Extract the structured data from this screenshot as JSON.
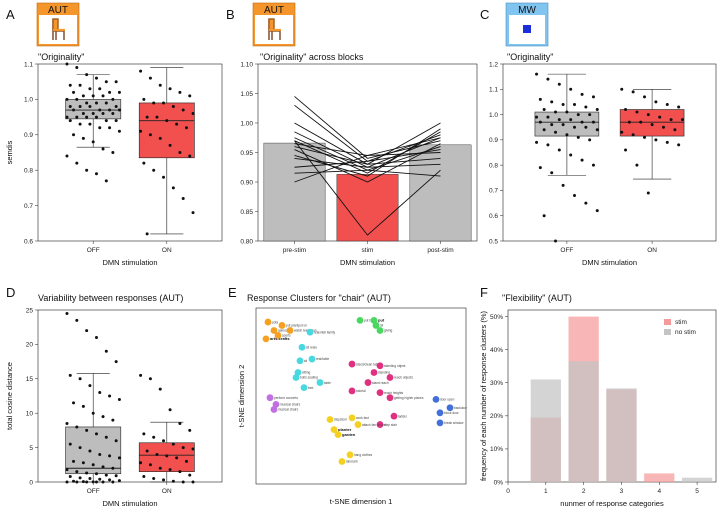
{
  "colors": {
    "off": "#bdbdbd",
    "on": "#f2504f",
    "orange": "#f5962c",
    "badge_blue": "#1a2fd8",
    "stim_bar": "#f59a9a",
    "nostim_bar": "#c4c4c4",
    "clusters": [
      "#f5a020",
      "#48d860",
      "#48d8e0",
      "#e03080",
      "#c070e0",
      "#f5d020",
      "#4070d8"
    ]
  },
  "panels": {
    "A": {
      "letter": "A",
      "badge": "AUT",
      "title": "\"Originality\""
    },
    "B": {
      "letter": "B",
      "badge": "AUT",
      "title": "\"Originality\" across blocks"
    },
    "C": {
      "letter": "C",
      "badge": "MW",
      "title": "\"Originality\""
    },
    "D": {
      "letter": "D",
      "title": "Variability between responses (AUT)"
    },
    "E": {
      "letter": "E",
      "title": "Response Clusters for \"chair\" (AUT)"
    },
    "F": {
      "letter": "F",
      "title": "\"Flexibility\" (AUT)"
    }
  },
  "chart_data": [
    {
      "id": "A",
      "type": "box",
      "title": "\"Originality\"",
      "xlabel": "DMN stimulation",
      "ylabel": "semdis",
      "ylim": [
        0.6,
        1.1
      ],
      "yticks": [
        "0.6",
        "0.7",
        "0.8",
        "0.9",
        "1.0",
        "1.1"
      ],
      "categories": [
        "OFF",
        "ON"
      ],
      "boxes": [
        {
          "name": "OFF",
          "min": 0.865,
          "q1": 0.945,
          "median": 0.97,
          "q3": 1.0,
          "max": 1.07,
          "points": [
            1.1,
            1.09,
            1.07,
            1.06,
            1.05,
            1.05,
            1.04,
            1.04,
            1.03,
            1.03,
            1.02,
            1.02,
            1.02,
            1.01,
            1.01,
            1.01,
            1.0,
            1.0,
            1.0,
            0.99,
            0.99,
            0.99,
            0.98,
            0.98,
            0.98,
            0.98,
            0.97,
            0.97,
            0.97,
            0.97,
            0.96,
            0.96,
            0.96,
            0.96,
            0.95,
            0.95,
            0.95,
            0.95,
            0.94,
            0.94,
            0.94,
            0.93,
            0.93,
            0.92,
            0.92,
            0.91,
            0.9,
            0.89,
            0.88,
            0.86,
            0.85,
            0.84,
            0.82,
            0.8,
            0.79,
            0.77
          ]
        },
        {
          "name": "ON",
          "min": 0.62,
          "q1": 0.835,
          "median": 0.94,
          "q3": 0.99,
          "max": 1.09,
          "points": [
            1.08,
            1.06,
            1.04,
            1.03,
            1.02,
            1.01,
            1.0,
            0.99,
            0.99,
            0.98,
            0.97,
            0.96,
            0.95,
            0.95,
            0.94,
            0.93,
            0.92,
            0.91,
            0.9,
            0.89,
            0.87,
            0.85,
            0.84,
            0.82,
            0.8,
            0.78,
            0.75,
            0.72,
            0.68,
            0.62
          ]
        }
      ]
    },
    {
      "id": "B",
      "type": "bar",
      "title": "\"Originality\" across blocks",
      "xlabel": "DMN stimulation",
      "ylabel": "",
      "ylim": [
        0.8,
        1.1
      ],
      "yticks": [
        "0.80",
        "0.85",
        "0.90",
        "0.95",
        "1.00",
        "1.05",
        "1.10"
      ],
      "categories": [
        "pre-stim",
        "stim",
        "post-stim"
      ],
      "values": [
        0.966,
        0.913,
        0.963
      ],
      "subjects": [
        [
          1.045,
          0.94,
          0.97
        ],
        [
          1.03,
          0.935,
          0.98
        ],
        [
          1.0,
          0.93,
          1.0
        ],
        [
          0.985,
          0.925,
          0.975
        ],
        [
          0.975,
          0.92,
          0.96
        ],
        [
          0.97,
          0.915,
          0.985
        ],
        [
          0.965,
          0.945,
          0.95
        ],
        [
          0.96,
          0.93,
          0.94
        ],
        [
          0.955,
          0.9,
          0.965
        ],
        [
          0.945,
          0.91,
          0.99
        ],
        [
          0.94,
          0.925,
          0.93
        ],
        [
          0.925,
          0.935,
          0.955
        ],
        [
          0.915,
          0.92,
          0.91
        ],
        [
          0.9,
          0.945,
          0.975
        ],
        [
          0.97,
          0.81,
          0.92
        ]
      ]
    },
    {
      "id": "C",
      "type": "box",
      "title": "\"Originality\"",
      "xlabel": "DMN stimulation",
      "ylabel": "",
      "ylim": [
        0.5,
        1.2
      ],
      "yticks": [
        "0.5",
        "0.6",
        "0.7",
        "0.8",
        "0.9",
        "1.0",
        "1.1",
        "1.2"
      ],
      "categories": [
        "OFF",
        "ON"
      ],
      "boxes": [
        {
          "name": "OFF",
          "min": 0.76,
          "q1": 0.915,
          "median": 0.97,
          "q3": 1.01,
          "max": 1.16,
          "points": [
            1.16,
            1.14,
            1.12,
            1.1,
            1.08,
            1.07,
            1.06,
            1.05,
            1.04,
            1.04,
            1.03,
            1.02,
            1.02,
            1.01,
            1.01,
            1.0,
            1.0,
            0.99,
            0.99,
            0.98,
            0.98,
            0.97,
            0.97,
            0.97,
            0.96,
            0.96,
            0.95,
            0.95,
            0.94,
            0.94,
            0.93,
            0.92,
            0.91,
            0.9,
            0.89,
            0.88,
            0.86,
            0.84,
            0.82,
            0.8,
            0.79,
            0.77,
            0.72,
            0.68,
            0.65,
            0.62,
            0.6,
            0.5
          ]
        },
        {
          "name": "ON",
          "min": 0.745,
          "q1": 0.915,
          "median": 0.97,
          "q3": 1.02,
          "max": 1.1,
          "points": [
            1.1,
            1.09,
            1.07,
            1.05,
            1.04,
            1.03,
            1.02,
            1.01,
            1.0,
            0.99,
            0.98,
            0.98,
            0.97,
            0.97,
            0.96,
            0.95,
            0.94,
            0.93,
            0.92,
            0.91,
            0.9,
            0.89,
            0.88,
            0.86,
            0.8,
            0.69
          ]
        }
      ]
    },
    {
      "id": "D",
      "type": "box",
      "title": "Variability between responses (AUT)",
      "xlabel": "DMN stimulation",
      "ylabel": "total cosine distance",
      "ylim": [
        0,
        25
      ],
      "yticks": [
        "0",
        "5",
        "10",
        "15",
        "20",
        "25"
      ],
      "categories": [
        "OFF",
        "ON"
      ],
      "boxes": [
        {
          "name": "OFF",
          "min": 0,
          "q1": 1.2,
          "median": 2.0,
          "q3": 8.0,
          "max": 15.8,
          "points": [
            24.5,
            23.5,
            22,
            21,
            19,
            17.5,
            15.5,
            15,
            14,
            13,
            12.5,
            12,
            11.5,
            11,
            10,
            9.5,
            9,
            8.5,
            8,
            7.5,
            7,
            6.5,
            6,
            5.5,
            5,
            4.5,
            4,
            3.8,
            3.5,
            3,
            2.8,
            2.5,
            2.2,
            2,
            1.8,
            1.5,
            1.3,
            1.2,
            1,
            0.9,
            0.8,
            0.6,
            0.5,
            0.4,
            0.3,
            0.2,
            0.1,
            0.05,
            0.02,
            0,
            0,
            0,
            0,
            0,
            0
          ]
        },
        {
          "name": "ON",
          "min": 0,
          "q1": 1.5,
          "median": 3.9,
          "q3": 5.7,
          "max": 8.7,
          "points": [
            15.5,
            15,
            13.5,
            10.5,
            8.5,
            7.5,
            7,
            6.5,
            6,
            5.5,
            5,
            4.8,
            4.5,
            4,
            3.8,
            3.5,
            3,
            2.8,
            2.5,
            2,
            1.8,
            1.5,
            1,
            0.8,
            0.5,
            0.3,
            0.1,
            0,
            0
          ]
        }
      ]
    },
    {
      "id": "E",
      "type": "scatter",
      "title": "Response Clusters for \"chair\" (AUT)",
      "xlabel": "t-SNE dimension 1",
      "ylabel": "t-SNE dimension 2",
      "points": [
        {
          "x": 0.04,
          "y": 0.94,
          "c": 0,
          "label": "sofa"
        },
        {
          "x": 0.11,
          "y": 0.92,
          "c": 0,
          "label": "put plantpot on"
        },
        {
          "x": 0.07,
          "y": 0.89,
          "c": 0,
          "label": "games"
        },
        {
          "x": 0.15,
          "y": 0.89,
          "c": 0,
          "label": "watch television"
        },
        {
          "x": 0.09,
          "y": 0.86,
          "c": 0,
          "label": "sports"
        },
        {
          "x": 0.03,
          "y": 0.84,
          "c": 0,
          "label": "arts-crafts"
        },
        {
          "x": 0.5,
          "y": 0.95,
          "c": 1,
          "label": "put by"
        },
        {
          "x": 0.57,
          "y": 0.95,
          "c": 1,
          "label": "put"
        },
        {
          "x": 0.58,
          "y": 0.92,
          "c": 1,
          "label": "sit"
        },
        {
          "x": 0.6,
          "y": 0.89,
          "c": 1,
          "label": "giving"
        },
        {
          "x": 0.25,
          "y": 0.88,
          "c": 2,
          "label": "relax/tell family"
        },
        {
          "x": 0.21,
          "y": 0.79,
          "c": 2,
          "label": "sit relax"
        },
        {
          "x": 0.26,
          "y": 0.72,
          "c": 2,
          "label": "rest/table"
        },
        {
          "x": 0.2,
          "y": 0.71,
          "c": 2,
          "label": "sit"
        },
        {
          "x": 0.19,
          "y": 0.64,
          "c": 2,
          "label": "sitting"
        },
        {
          "x": 0.18,
          "y": 0.61,
          "c": 2,
          "label": "bolts seating"
        },
        {
          "x": 0.3,
          "y": 0.58,
          "c": 2,
          "label": "table"
        },
        {
          "x": 0.22,
          "y": 0.55,
          "c": 2,
          "label": "bed"
        },
        {
          "x": 0.46,
          "y": 0.69,
          "c": 3,
          "label": "stand/clean table"
        },
        {
          "x": 0.6,
          "y": 0.68,
          "c": 3,
          "label": "standing object"
        },
        {
          "x": 0.57,
          "y": 0.64,
          "c": 3,
          "label": "standing"
        },
        {
          "x": 0.65,
          "y": 0.61,
          "c": 3,
          "label": "reach objects"
        },
        {
          "x": 0.54,
          "y": 0.58,
          "c": 3,
          "label": "stand reach"
        },
        {
          "x": 0.46,
          "y": 0.53,
          "c": 3,
          "label": "tutorial"
        },
        {
          "x": 0.6,
          "y": 0.52,
          "c": 3,
          "label": "reach heights"
        },
        {
          "x": 0.65,
          "y": 0.49,
          "c": 3,
          "label": "getting higher places"
        },
        {
          "x": 0.67,
          "y": 0.38,
          "c": 3,
          "label": "ladder"
        },
        {
          "x": 0.6,
          "y": 0.33,
          "c": 3,
          "label": "step stair"
        },
        {
          "x": 0.05,
          "y": 0.49,
          "c": 4,
          "label": "perform concerts"
        },
        {
          "x": 0.08,
          "y": 0.45,
          "c": 4,
          "label": "musical chairs"
        },
        {
          "x": 0.07,
          "y": 0.42,
          "c": 4,
          "label": "musical chairs"
        },
        {
          "x": 0.35,
          "y": 0.36,
          "c": 5,
          "label": "stepstool"
        },
        {
          "x": 0.46,
          "y": 0.37,
          "c": 5,
          "label": "work fast"
        },
        {
          "x": 0.49,
          "y": 0.33,
          "c": 5,
          "label": "attach fan on lod"
        },
        {
          "x": 0.37,
          "y": 0.3,
          "c": 5,
          "label": "planter"
        },
        {
          "x": 0.39,
          "y": 0.27,
          "c": 5,
          "label": "garden"
        },
        {
          "x": 0.45,
          "y": 0.15,
          "c": 5,
          "label": "hang clothes"
        },
        {
          "x": 0.41,
          "y": 0.11,
          "c": 5,
          "label": "laborant"
        },
        {
          "x": 0.88,
          "y": 0.48,
          "c": 6,
          "label": "door open"
        },
        {
          "x": 0.95,
          "y": 0.43,
          "c": 6,
          "label": "backdoor"
        },
        {
          "x": 0.9,
          "y": 0.4,
          "c": 6,
          "label": "block door"
        },
        {
          "x": 0.9,
          "y": 0.34,
          "c": 6,
          "label": "break window"
        }
      ]
    },
    {
      "id": "F",
      "type": "bar",
      "title": "\"Flexibility\" (AUT)",
      "xlabel": "nunmer of response categories",
      "ylabel": "frequency of each number of response clusters (%)",
      "xlim": [
        0,
        5.5
      ],
      "ylim": [
        0,
        52
      ],
      "xticks": [
        "0",
        "1",
        "2",
        "3",
        "4",
        "5"
      ],
      "yticks": [
        "0%",
        "10%",
        "20%",
        "30%",
        "40%",
        "50%"
      ],
      "categories": [
        1,
        2,
        3,
        4,
        5
      ],
      "series": [
        {
          "name": "stim",
          "values": [
            19.5,
            50,
            28,
            2.6,
            0
          ]
        },
        {
          "name": "no stim",
          "values": [
            31,
            36.5,
            28.3,
            0,
            1.3
          ]
        }
      ],
      "legend": "top-right"
    }
  ]
}
